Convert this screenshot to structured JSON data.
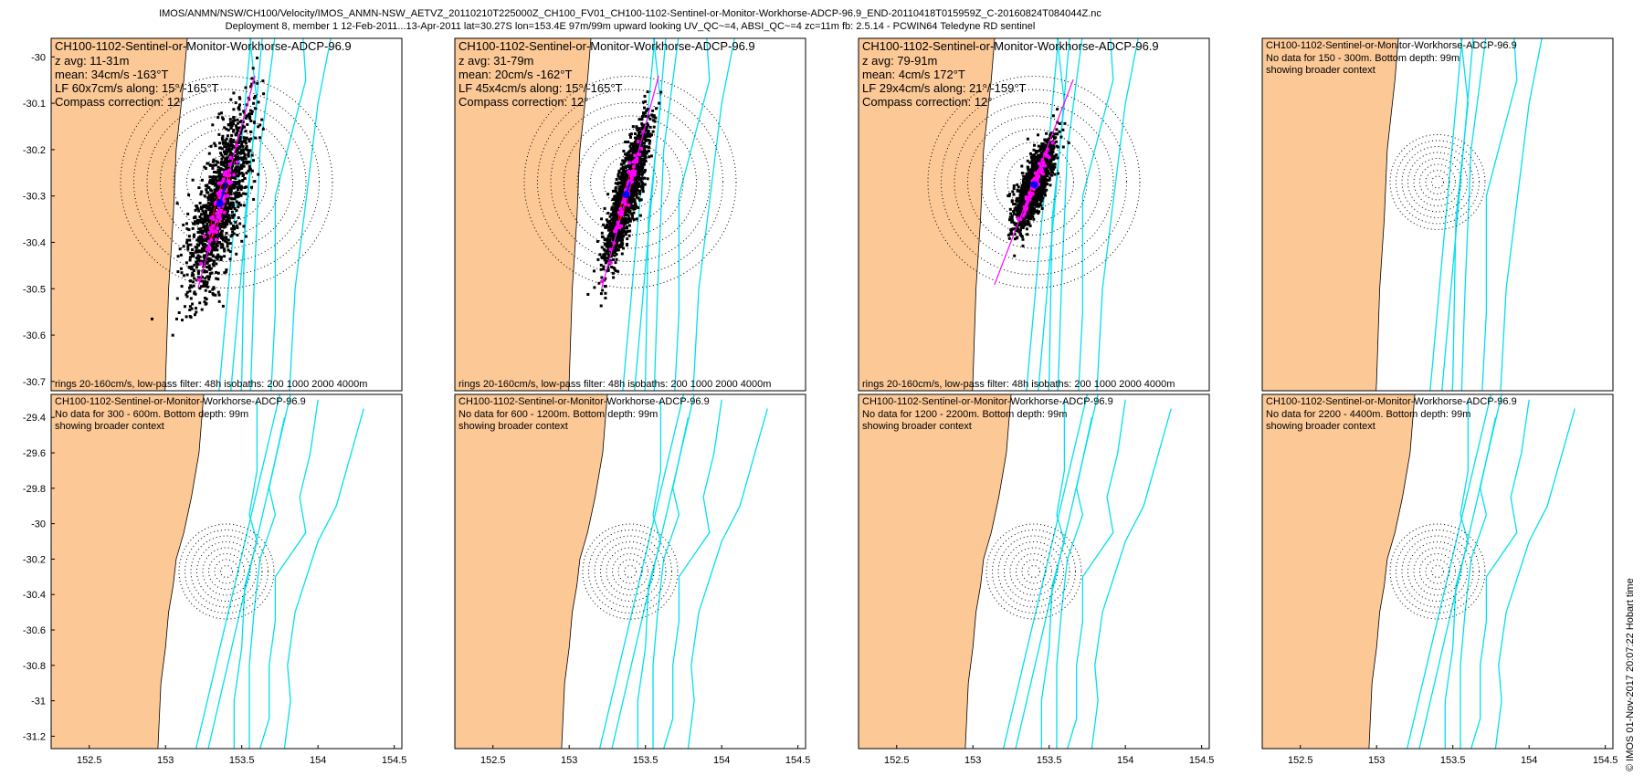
{
  "header": {
    "line1": "IMOS/ANMN/NSW/CH100/Velocity/IMOS_ANMN-NSW_AETVZ_20110210T225000Z_CH100_FV01_CH100-1102-Sentinel-or-Monitor-Workhorse-ADCP-96.9_END-20110418T015959Z_C-20160824T084044Z.nc",
    "line2": "Deployment 8, member 1 12-Feb-2011...13-Apr-2011 lat=30.27S lon=153.4E 97m/99m upward looking UV_QC~=4, ABSI_QC~=4 zc=11m fb: 2.5.14 - PCWIN64 Teledyne RD sentinel"
  },
  "side_stamp": "© IMOS 01-Nov-2017 20:07:22 Hobart time",
  "colors": {
    "land": "#fbc896",
    "isobath": "#00e0ee",
    "data": "#000000",
    "principal_axis": "#ff00ff",
    "mean_vector": "#0000ff",
    "ellipse": "#ff0000"
  },
  "chart_data": [
    {
      "type": "scatter",
      "title": "CH100-1102-Sentinel-or-Monitor-Workhorse-ADCP-96.9",
      "info": [
        "z avg: 11-31m",
        "mean: 34cm/s -163°T",
        "LF 60x7cm/s along: 15°/-165°T",
        "Compass correction: 12°"
      ],
      "footer": "rings 20-160cm/s, low-pass filter: 48h isobaths: 200 1000 2000 4000m",
      "xlim": [
        152.25,
        154.55
      ],
      "ylim": [
        -30.72,
        -29.96
      ],
      "xticks": [],
      "yticks": [
        -30,
        -30.1,
        -30.2,
        -30.3,
        -30.4,
        -30.5,
        -30.6,
        -30.7
      ],
      "has_data": true,
      "station": [
        153.4,
        -30.27
      ],
      "ring_step_deg": 0.0167,
      "rings_cm_s": [
        20,
        40,
        60,
        80,
        100,
        120,
        140,
        160
      ],
      "mean_speed_cm_s": 34,
      "mean_dir_deg_true": -163,
      "lf_major_cm_s": 60,
      "lf_minor_cm_s": 7,
      "lf_along_deg_true": 15
    },
    {
      "type": "scatter",
      "title": "CH100-1102-Sentinel-or-Monitor-Workhorse-ADCP-96.9",
      "info": [
        "z avg: 31-79m",
        "mean: 20cm/s -162°T",
        "LF 45x4cm/s along: 15°/-165°T",
        "Compass correction: 12°"
      ],
      "footer": "rings 20-160cm/s, low-pass filter: 48h isobaths: 200 1000 2000 4000m",
      "xlim": [
        152.25,
        154.55
      ],
      "ylim": [
        -30.72,
        -29.96
      ],
      "xticks": [],
      "yticks": [],
      "has_data": true,
      "station": [
        153.4,
        -30.27
      ],
      "ring_step_deg": 0.0167,
      "rings_cm_s": [
        20,
        40,
        60,
        80,
        100,
        120,
        140,
        160
      ],
      "mean_speed_cm_s": 20,
      "mean_dir_deg_true": -162,
      "lf_major_cm_s": 45,
      "lf_minor_cm_s": 4,
      "lf_along_deg_true": 15
    },
    {
      "type": "scatter",
      "title": "CH100-1102-Sentinel-or-Monitor-Workhorse-ADCP-96.9",
      "info": [
        "z avg: 79-91m",
        "mean: 4cm/s 172°T",
        "LF 29x4cm/s along: 21°/-159°T",
        "Compass correction: 12°"
      ],
      "footer": "rings 20-160cm/s, low-pass filter: 48h isobaths: 200 1000 2000 4000m",
      "xlim": [
        152.25,
        154.55
      ],
      "ylim": [
        -30.72,
        -29.96
      ],
      "xticks": [],
      "yticks": [],
      "has_data": true,
      "station": [
        153.4,
        -30.27
      ],
      "ring_step_deg": 0.0167,
      "rings_cm_s": [
        20,
        40,
        60,
        80,
        100,
        120,
        140,
        160
      ],
      "mean_speed_cm_s": 4,
      "mean_dir_deg_true": 172,
      "lf_major_cm_s": 29,
      "lf_minor_cm_s": 4,
      "lf_along_deg_true": 21
    },
    {
      "type": "scatter",
      "title": "CH100-1102-Sentinel-or-Monitor-Workhorse-ADCP-96.9",
      "info": [
        "No data for 150 - 300m. Bottom depth: 99m",
        "showing broader context"
      ],
      "footer": "",
      "xlim": [
        152.25,
        154.55
      ],
      "ylim": [
        -30.72,
        -29.96
      ],
      "xticks": [],
      "yticks": [],
      "has_data": false,
      "station": [
        153.4,
        -30.27
      ],
      "ring_step_deg": 0.0167,
      "rings_cm_s": [
        20,
        40,
        60,
        80,
        100,
        120,
        140,
        160
      ]
    },
    {
      "type": "scatter",
      "title": "CH100-1102-Sentinel-or-Monitor-Workhorse-ADCP-96.9",
      "info": [
        "No data for 300 - 600m. Bottom depth: 99m",
        "showing broader context"
      ],
      "footer": "",
      "xlim": [
        152.25,
        154.55
      ],
      "ylim": [
        -31.27,
        -29.27
      ],
      "xticks": [
        152.5,
        153,
        153.5,
        154,
        154.5
      ],
      "yticks": [
        -29.4,
        -29.6,
        -29.8,
        -30,
        -30.2,
        -30.4,
        -30.6,
        -30.8,
        -31,
        -31.2
      ],
      "has_data": false,
      "station": [
        153.4,
        -30.27
      ],
      "ring_step_deg": 0.0167,
      "rings_cm_s": [
        20,
        40,
        60,
        80,
        100,
        120,
        140,
        160
      ]
    },
    {
      "type": "scatter",
      "title": "CH100-1102-Sentinel-or-Monitor-Workhorse-ADCP-96.9",
      "info": [
        "No data for 600 - 1200m. Bottom depth: 99m",
        "showing broader context"
      ],
      "footer": "",
      "xlim": [
        152.25,
        154.55
      ],
      "ylim": [
        -31.27,
        -29.27
      ],
      "xticks": [
        152.5,
        153,
        153.5,
        154,
        154.5
      ],
      "yticks": [],
      "has_data": false,
      "station": [
        153.4,
        -30.27
      ],
      "ring_step_deg": 0.0167,
      "rings_cm_s": [
        20,
        40,
        60,
        80,
        100,
        120,
        140,
        160
      ]
    },
    {
      "type": "scatter",
      "title": "CH100-1102-Sentinel-or-Monitor-Workhorse-ADCP-96.9",
      "info": [
        "No data for 1200 - 2200m. Bottom depth: 99m",
        "showing broader context"
      ],
      "footer": "",
      "xlim": [
        152.25,
        154.55
      ],
      "ylim": [
        -31.27,
        -29.27
      ],
      "xticks": [
        152.5,
        153,
        153.5,
        154,
        154.5
      ],
      "yticks": [],
      "has_data": false,
      "station": [
        153.4,
        -30.27
      ],
      "ring_step_deg": 0.0167,
      "rings_cm_s": [
        20,
        40,
        60,
        80,
        100,
        120,
        140,
        160
      ]
    },
    {
      "type": "scatter",
      "title": "CH100-1102-Sentinel-or-Monitor-Workhorse-ADCP-96.9",
      "info": [
        "No data for 2200 - 4400m. Bottom depth: 99m",
        "showing broader context"
      ],
      "footer": "",
      "xlim": [
        152.25,
        154.55
      ],
      "ylim": [
        -31.27,
        -29.27
      ],
      "xticks": [
        152.5,
        153,
        153.5,
        154,
        154.5
      ],
      "yticks": [],
      "has_data": false,
      "station": [
        153.4,
        -30.27
      ],
      "ring_step_deg": 0.0167,
      "rings_cm_s": [
        20,
        40,
        60,
        80,
        100,
        120,
        140,
        160
      ]
    }
  ]
}
